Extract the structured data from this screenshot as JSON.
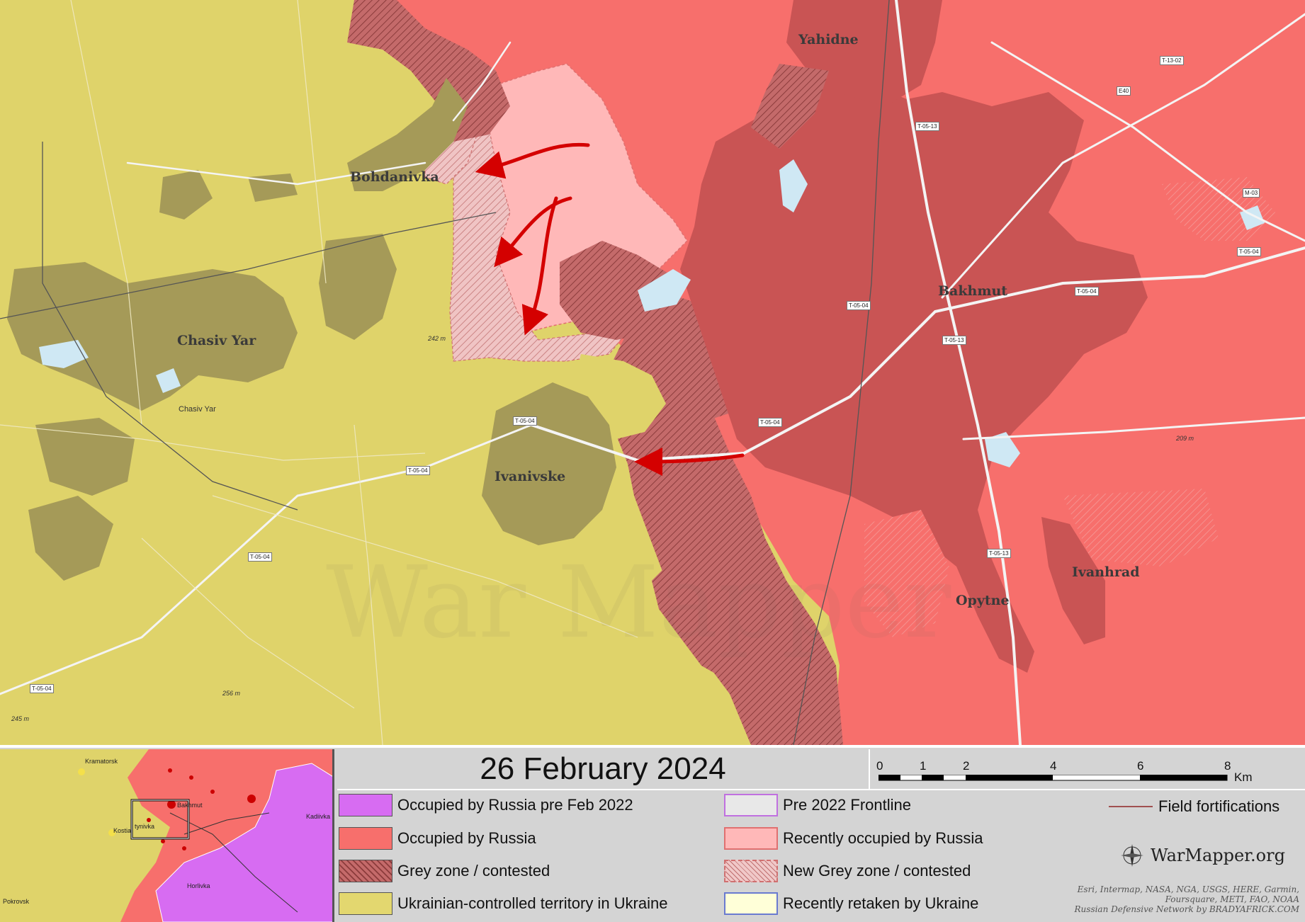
{
  "map": {
    "towns": [
      {
        "id": "yahidne",
        "name": "Yahidne"
      },
      {
        "id": "bohdanivka",
        "name": "Bohdanivka"
      },
      {
        "id": "bakhmut",
        "name": "Bakhmut"
      },
      {
        "id": "chasiv-yar",
        "name": "Chasiv Yar"
      },
      {
        "id": "chasiv-yar-small",
        "name": "Chasiv Yar"
      },
      {
        "id": "ivanivske",
        "name": "Ivanivske"
      },
      {
        "id": "ivanhrad",
        "name": "Ivanhrad"
      },
      {
        "id": "opytne",
        "name": "Opytne"
      }
    ],
    "roads": [
      "T-05-13",
      "T-05-04",
      "T-13-02",
      "E40",
      "M-03"
    ],
    "elevations": [
      "242 m",
      "256 m",
      "245 m",
      "209 m"
    ],
    "watermark": "War Mapper",
    "colors": {
      "ukraine": "#dfd36a",
      "russia": "#f76f6c",
      "grey_zone": "#c06868",
      "recent_russia": "#ffb8b8",
      "new_grey": "#f0bcbc",
      "urban_ua": "#a59a58",
      "urban_ru": "#d05555",
      "water": "#cfe8f4",
      "arrow": "#d40000"
    }
  },
  "inset": {
    "labels": [
      "Kramatorsk",
      "Bakhmut",
      "Kostia",
      "tynivka",
      "Kadiivka",
      "Horlivka",
      "Pokrovsk"
    ]
  },
  "title": "26 February 2024",
  "scale": {
    "ticks": [
      "0",
      "1",
      "2",
      "4",
      "6",
      "8"
    ],
    "unit": "Km"
  },
  "legend": [
    {
      "label": "Occupied by Russia pre Feb 2022",
      "color": "#d76cf2"
    },
    {
      "label": "Occupied by Russia",
      "color": "#f76f6c"
    },
    {
      "label": "Grey zone / contested",
      "color": "#c06868"
    },
    {
      "label": "Ukrainian-controlled territory in Ukraine",
      "color": "#e3d76f"
    },
    {
      "label": "Pre 2022 Frontline",
      "color": "#e8e8e8"
    },
    {
      "label": "Recently occupied by Russia",
      "color": "#ffb8b8"
    },
    {
      "label": "New Grey zone / contested",
      "color": "#f0c8c8"
    },
    {
      "label": "Recently retaken by Ukraine",
      "color": "#ffffd8"
    }
  ],
  "field_fortifications": "Field fortifications",
  "brand": "WarMapper.org",
  "credits": [
    "Esri, Intermap, NASA, NGA, USGS, HERE, Garmin,",
    "Foursquare, METI, FAO, NOAA",
    "Russian Defensive Network by BRADYAFRICK.COM"
  ]
}
